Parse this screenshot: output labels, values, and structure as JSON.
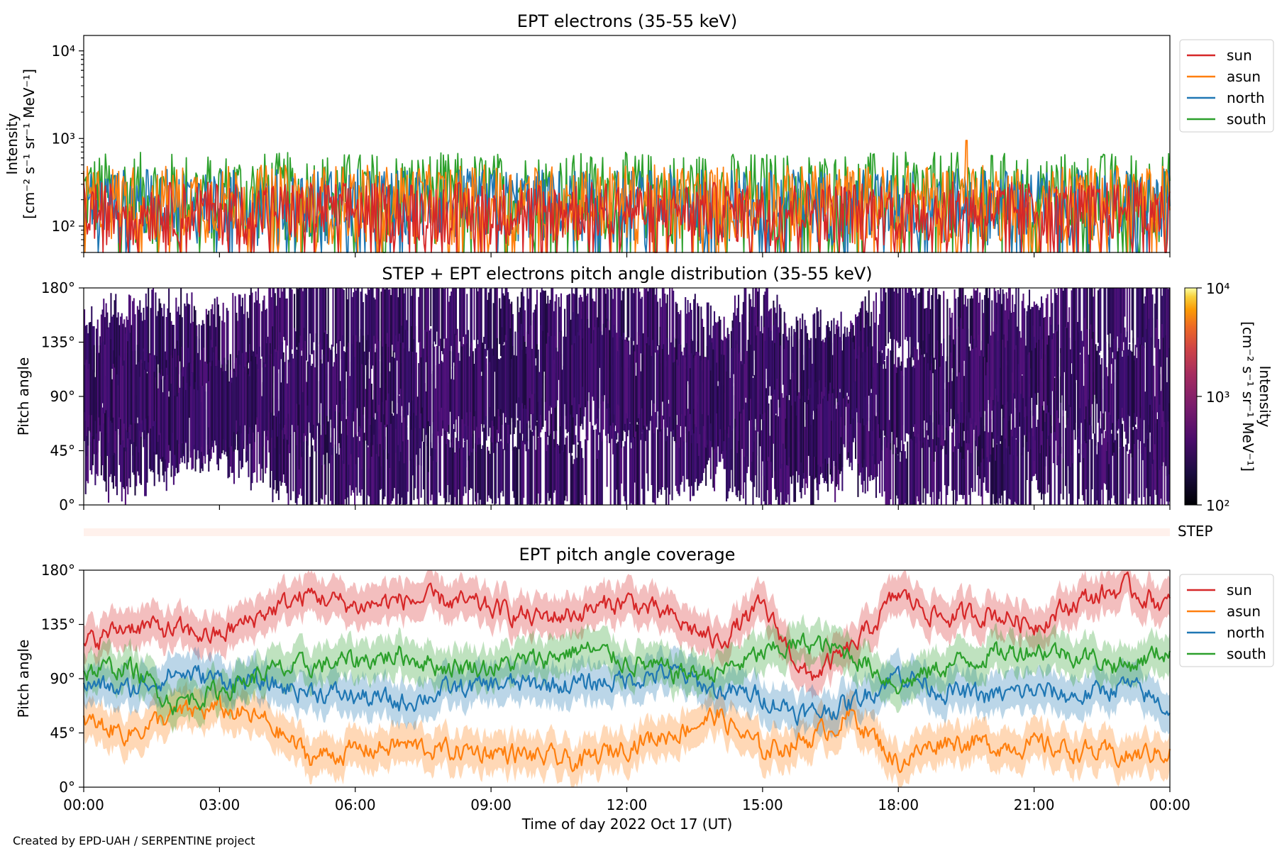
{
  "figure": {
    "credit": "Created by EPD-UAH / SERPENTINE project",
    "xlabel": "Time of day 2022 Oct 17 (UT)",
    "x_ticks": [
      "00:00",
      "03:00",
      "06:00",
      "09:00",
      "12:00",
      "15:00",
      "18:00",
      "21:00",
      "00:00"
    ],
    "step_label": "STEP"
  },
  "colors": {
    "sun": "#d62728",
    "asun": "#ff7f0e",
    "north": "#1f77b4",
    "south": "#2ca02c",
    "step_band": "#fff1ec"
  },
  "chart_data": [
    {
      "type": "line",
      "title": "EPT electrons (35-55 keV)",
      "ylabel_line1": "Intensity",
      "ylabel_line2": "[cm⁻² s⁻¹ sr⁻¹ MeV⁻¹]",
      "yscale": "log",
      "ylim": [
        50,
        15000
      ],
      "xlim_hours": [
        0,
        24
      ],
      "y_ticks": [
        {
          "value": 100,
          "label": "10²"
        },
        {
          "value": 1000,
          "label": "10³"
        },
        {
          "value": 10000,
          "label": "10⁴"
        }
      ],
      "legend_position": "outside-right",
      "series": [
        {
          "name": "sun",
          "typical_range": [
            60,
            320
          ]
        },
        {
          "name": "asun",
          "typical_range": [
            60,
            500
          ],
          "peak": {
            "x_hours": 19.5,
            "y": 950
          }
        },
        {
          "name": "north",
          "typical_range": [
            60,
            450
          ]
        },
        {
          "name": "south",
          "typical_range": [
            60,
            700
          ]
        }
      ]
    },
    {
      "type": "heatmap",
      "title": "STEP + EPT electrons pitch angle distribution (35-55 keV)",
      "ylabel": "Pitch angle",
      "ylim": [
        0,
        180
      ],
      "y_ticks": [
        "0°",
        "45°",
        "90°",
        "135°",
        "180°"
      ],
      "colorbar": {
        "label_line1": "Intensity",
        "label_line2": "[cm⁻² s⁻¹ sr⁻¹ MeV⁻¹]",
        "scale": "log",
        "range": [
          100,
          10000
        ],
        "ticks": [
          "10²",
          "10³",
          "10⁴"
        ],
        "colormap": "inferno"
      },
      "note": "values mostly near 10² (dark purple) with white gaps"
    },
    {
      "type": "line",
      "title": "EPT pitch angle coverage",
      "ylabel": "Pitch angle",
      "ylim": [
        0,
        180
      ],
      "y_ticks": [
        "0°",
        "45°",
        "90°",
        "135°",
        "180°"
      ],
      "legend_position": "outside-right",
      "x_hours": [
        0,
        1,
        2,
        3,
        4,
        5,
        6,
        7,
        8,
        9,
        10,
        11,
        12,
        13,
        14,
        15,
        16,
        17,
        18,
        19,
        20,
        21,
        22,
        23,
        24
      ],
      "series": [
        {
          "name": "sun",
          "values": [
            118,
            135,
            130,
            125,
            145,
            160,
            150,
            155,
            155,
            148,
            140,
            145,
            155,
            140,
            120,
            150,
            90,
            115,
            160,
            140,
            145,
            135,
            155,
            165,
            150
          ]
        },
        {
          "name": "asun",
          "values": [
            55,
            45,
            60,
            65,
            55,
            25,
            30,
            35,
            30,
            30,
            25,
            20,
            35,
            45,
            60,
            30,
            40,
            60,
            20,
            40,
            35,
            35,
            30,
            25,
            30
          ]
        },
        {
          "name": "north",
          "values": [
            85,
            80,
            95,
            90,
            85,
            80,
            75,
            70,
            80,
            85,
            85,
            85,
            90,
            95,
            80,
            75,
            60,
            70,
            95,
            80,
            75,
            80,
            75,
            85,
            65
          ]
        },
        {
          "name": "south",
          "values": [
            95,
            100,
            70,
            80,
            95,
            100,
            105,
            110,
            100,
            100,
            105,
            115,
            105,
            95,
            95,
            110,
            120,
            110,
            85,
            100,
            110,
            115,
            110,
            100,
            115
          ]
        }
      ]
    }
  ]
}
